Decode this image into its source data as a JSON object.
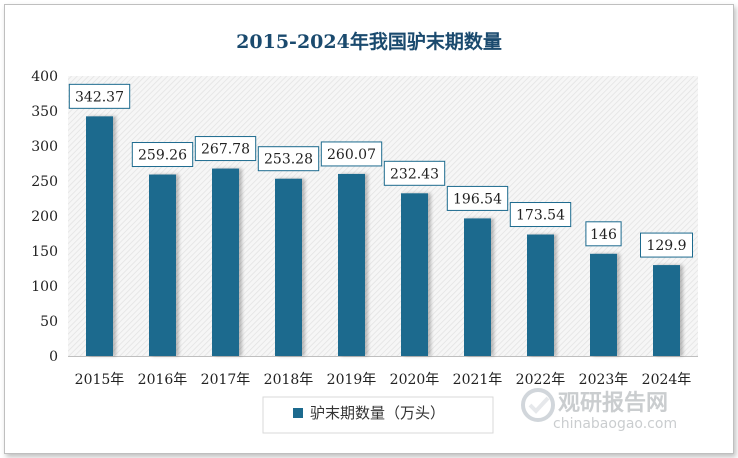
{
  "chart_data": {
    "type": "bar",
    "title": "2015-2024年我国驴末期数量",
    "categories": [
      "2015年",
      "2016年",
      "2017年",
      "2018年",
      "2019年",
      "2020年",
      "2021年",
      "2022年",
      "2023年",
      "2024年"
    ],
    "series": [
      {
        "name": "驴末期数量（万头）",
        "values": [
          342.37,
          259.26,
          267.78,
          253.28,
          260.07,
          232.43,
          196.54,
          173.54,
          146,
          129.9
        ],
        "data_labels": [
          "342.37",
          "259.26",
          "267.78",
          "253.28",
          "260.07",
          "232.43",
          "196.54",
          "173.54",
          "146",
          "129.9"
        ]
      }
    ],
    "y_ticks": [
      "0",
      "50",
      "100",
      "150",
      "200",
      "250",
      "300",
      "350",
      "400"
    ],
    "ylim": [
      0,
      400
    ],
    "grid": false,
    "legend": "bottom",
    "colors": {
      "bar": "#1c6a8e",
      "title": "#1a4a6e",
      "label_border": "#1c6a8e",
      "plot_bg": "#f4f4f4"
    }
  },
  "watermark": {
    "brand": "观研报告网",
    "url": "chinabaogao.com"
  }
}
